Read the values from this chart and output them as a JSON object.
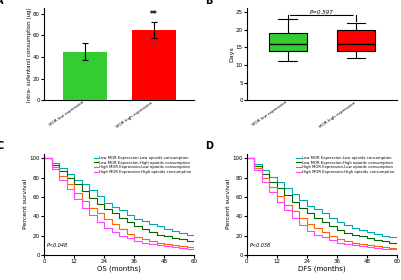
{
  "panel_A": {
    "bars": [
      {
        "label": "MOR low expression",
        "value": 45,
        "error": 8,
        "color": "#33cc33"
      },
      {
        "label": "MOR high expression",
        "value": 65,
        "error": 7,
        "color": "#ff0000"
      }
    ],
    "ylabel": "Intra- sufentanil consumption (ug)",
    "ylim": [
      0,
      85
    ],
    "yticks": [
      0,
      20,
      40,
      60,
      80
    ],
    "significance": "**"
  },
  "panel_B": {
    "boxes": [
      {
        "label": "MOR low expression",
        "color": "#33cc33",
        "median": 16,
        "q1": 14,
        "q3": 19,
        "whisker_low": 11,
        "whisker_high": 23
      },
      {
        "label": "MOR high expression",
        "color": "#ff0000",
        "median": 16,
        "q1": 14,
        "q3": 20,
        "whisker_low": 12,
        "whisker_high": 22
      }
    ],
    "ylabel": "Days",
    "ylim": [
      0,
      26
    ],
    "yticks": [
      0,
      5,
      10,
      15,
      20,
      25
    ],
    "pvalue": "P=0.597"
  },
  "panel_C": {
    "xlabel": "OS (months)",
    "ylabel": "Percent survival",
    "xlim": [
      0,
      60
    ],
    "ylim": [
      0,
      105
    ],
    "xticks": [
      0,
      12,
      24,
      36,
      48,
      60
    ],
    "yticks": [
      0,
      20,
      40,
      60,
      80,
      100
    ],
    "pvalue": "P<0.048",
    "curves": [
      {
        "label": "Low MOR Expression-Low opioids consumption",
        "color": "#00aaaa",
        "x": [
          0,
          3,
          6,
          9,
          12,
          15,
          18,
          21,
          24,
          27,
          30,
          33,
          36,
          39,
          42,
          45,
          48,
          51,
          54,
          57,
          60
        ],
        "y": [
          100,
          95,
          90,
          84,
          78,
          73,
          67,
          61,
          54,
          50,
          46,
          41,
          37,
          35,
          32,
          30,
          27,
          25,
          23,
          21,
          20
        ]
      },
      {
        "label": "Low MOR Expression-High opioids consumption",
        "color": "#006600",
        "x": [
          0,
          3,
          6,
          9,
          12,
          15,
          18,
          21,
          24,
          27,
          30,
          33,
          36,
          39,
          42,
          45,
          48,
          51,
          54,
          57,
          60
        ],
        "y": [
          100,
          93,
          87,
          80,
          73,
          66,
          59,
          53,
          47,
          43,
          38,
          34,
          30,
          27,
          24,
          21,
          19,
          17,
          16,
          14,
          13
        ]
      },
      {
        "label": "High MOR Expression-Low opioids consumption",
        "color": "#ff6600",
        "x": [
          0,
          3,
          6,
          9,
          12,
          15,
          18,
          21,
          24,
          27,
          30,
          33,
          36,
          39,
          42,
          45,
          48,
          51,
          54,
          57,
          60
        ],
        "y": [
          100,
          91,
          82,
          73,
          64,
          56,
          49,
          43,
          37,
          32,
          27,
          22,
          18,
          16,
          14,
          12,
          11,
          10,
          9,
          8,
          7
        ]
      },
      {
        "label": "High MOR Expression-High opioids consumption",
        "color": "#ff44ff",
        "x": [
          0,
          3,
          6,
          9,
          12,
          15,
          18,
          21,
          24,
          27,
          30,
          33,
          36,
          39,
          42,
          45,
          48,
          51,
          54,
          57,
          60
        ],
        "y": [
          100,
          89,
          78,
          68,
          58,
          49,
          41,
          34,
          28,
          24,
          20,
          17,
          14,
          12,
          11,
          10,
          9,
          8,
          7,
          6,
          6
        ]
      }
    ]
  },
  "panel_D": {
    "xlabel": "DFS (months)",
    "ylabel": "Percent survival",
    "xlim": [
      0,
      60
    ],
    "ylim": [
      0,
      105
    ],
    "xticks": [
      0,
      12,
      24,
      36,
      48,
      60
    ],
    "yticks": [
      0,
      20,
      40,
      60,
      80,
      100
    ],
    "pvalue": "P<0.038",
    "curves": [
      {
        "label": "Low MOR Expression-Low opioids consumption",
        "color": "#00aaaa",
        "x": [
          0,
          3,
          6,
          9,
          12,
          15,
          18,
          21,
          24,
          27,
          30,
          33,
          36,
          39,
          42,
          45,
          48,
          51,
          54,
          57,
          60
        ],
        "y": [
          100,
          94,
          88,
          81,
          75,
          69,
          63,
          57,
          51,
          47,
          43,
          38,
          34,
          31,
          28,
          26,
          24,
          22,
          20,
          18,
          17
        ]
      },
      {
        "label": "Low MOR Expression-High opioids consumption",
        "color": "#006600",
        "x": [
          0,
          3,
          6,
          9,
          12,
          15,
          18,
          21,
          24,
          27,
          30,
          33,
          36,
          39,
          42,
          45,
          48,
          51,
          54,
          57,
          60
        ],
        "y": [
          100,
          92,
          84,
          76,
          69,
          62,
          55,
          49,
          43,
          38,
          34,
          30,
          26,
          23,
          21,
          19,
          17,
          15,
          14,
          12,
          11
        ]
      },
      {
        "label": "High MOR Expression-Low opioids consumption",
        "color": "#ff6600",
        "x": [
          0,
          3,
          6,
          9,
          12,
          15,
          18,
          21,
          24,
          27,
          30,
          33,
          36,
          39,
          42,
          45,
          48,
          51,
          54,
          57,
          60
        ],
        "y": [
          100,
          90,
          80,
          70,
          61,
          52,
          45,
          38,
          32,
          28,
          24,
          20,
          16,
          14,
          12,
          11,
          10,
          9,
          8,
          7,
          6
        ]
      },
      {
        "label": "High MOR Expression-High opioids consumption",
        "color": "#ff44ff",
        "x": [
          0,
          3,
          6,
          9,
          12,
          15,
          18,
          21,
          24,
          27,
          30,
          33,
          36,
          39,
          42,
          45,
          48,
          51,
          54,
          57,
          60
        ],
        "y": [
          100,
          88,
          76,
          65,
          55,
          46,
          38,
          31,
          25,
          21,
          18,
          15,
          12,
          11,
          10,
          9,
          8,
          7,
          6,
          6,
          5
        ]
      }
    ]
  },
  "bg_color": "#ffffff",
  "label_fontsize": 4.5,
  "tick_fontsize": 4,
  "panel_label_fontsize": 7
}
